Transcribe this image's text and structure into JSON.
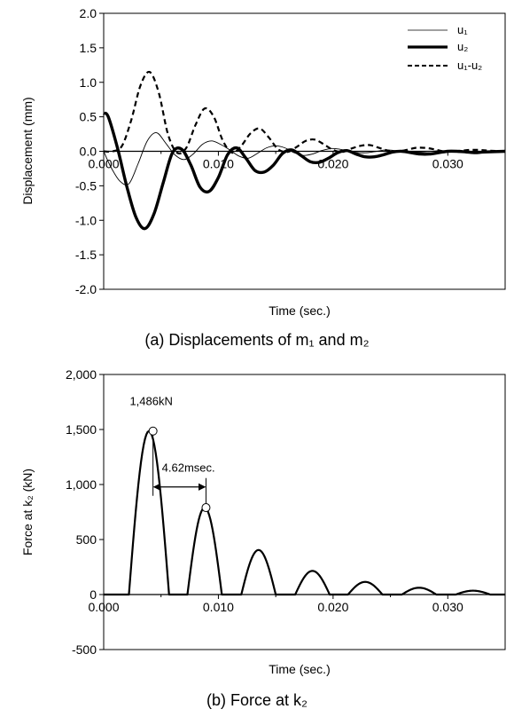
{
  "chart_data": [
    {
      "type": "line",
      "caption": "(a)  Displacements  of  m₁  and  m₂",
      "xlabel": "Time (sec.)",
      "ylabel": "Displacement (mm)",
      "xlim": [
        0,
        0.035
      ],
      "ylim": [
        -2.0,
        2.0
      ],
      "x_ticks": [
        "0.000",
        "0.010",
        "0.020",
        "0.030"
      ],
      "y_ticks": [
        "2.0",
        "1.5",
        "1.0",
        "0.5",
        "0.0",
        "-0.5",
        "-1.0",
        "-1.5",
        "-2.0"
      ],
      "legend_position": "top-right",
      "series": [
        {
          "name": "u₁",
          "style": "thin",
          "x": [
            0,
            0.0006,
            0.0014,
            0.0022,
            0.003,
            0.0038,
            0.0046,
            0.0054,
            0.0062,
            0.007,
            0.0078,
            0.0086,
            0.0094,
            0.0102,
            0.011,
            0.0118,
            0.0126,
            0.0134,
            0.0142,
            0.015,
            0.0158,
            0.0166,
            0.0174,
            0.0182,
            0.019,
            0.0198,
            0.0206,
            0.0214,
            0.0222,
            0.023,
            0.0238,
            0.0246,
            0.0254,
            0.0262,
            0.027,
            0.0278,
            0.0286,
            0.0294,
            0.0302,
            0.031,
            0.0318,
            0.0326,
            0.0334,
            0.035
          ],
          "values": [
            0.0,
            -0.22,
            -0.43,
            -0.47,
            -0.18,
            0.15,
            0.27,
            0.12,
            -0.05,
            -0.12,
            -0.04,
            0.1,
            0.15,
            0.1,
            0.02,
            -0.07,
            -0.1,
            -0.03,
            0.05,
            0.08,
            0.05,
            -0.02,
            -0.06,
            -0.04,
            0.01,
            0.04,
            0.03,
            0.0,
            -0.02,
            -0.02,
            0.0,
            0.02,
            0.01,
            0.0,
            -0.01,
            -0.01,
            0.0,
            0.01,
            0.0,
            0.0,
            0.0,
            0.0,
            0.0,
            0.0
          ]
        },
        {
          "name": "u₂",
          "style": "thick",
          "x": [
            0,
            0.0004,
            0.0012,
            0.002,
            0.0028,
            0.0036,
            0.0044,
            0.0052,
            0.006,
            0.0068,
            0.0076,
            0.0084,
            0.0092,
            0.01,
            0.0108,
            0.0116,
            0.0124,
            0.0132,
            0.014,
            0.0148,
            0.0156,
            0.0164,
            0.0172,
            0.018,
            0.0188,
            0.0196,
            0.0204,
            0.0212,
            0.022,
            0.0228,
            0.0236,
            0.0244,
            0.0252,
            0.026,
            0.0268,
            0.0276,
            0.0284,
            0.0292,
            0.03,
            0.0308,
            0.0316,
            0.0324,
            0.0332,
            0.035
          ],
          "values": [
            0.55,
            0.5,
            0.05,
            -0.5,
            -0.95,
            -1.12,
            -0.9,
            -0.45,
            -0.02,
            0.03,
            -0.2,
            -0.52,
            -0.58,
            -0.38,
            -0.05,
            0.05,
            -0.1,
            -0.28,
            -0.3,
            -0.2,
            -0.03,
            0.02,
            -0.06,
            -0.15,
            -0.16,
            -0.1,
            -0.02,
            0.01,
            -0.04,
            -0.08,
            -0.08,
            -0.05,
            -0.01,
            0.0,
            -0.02,
            -0.04,
            -0.04,
            -0.02,
            0.0,
            0.0,
            -0.01,
            -0.02,
            -0.01,
            0.0
          ]
        },
        {
          "name": "u₁-u₂",
          "style": "dashed",
          "x": [
            0,
            0.0008,
            0.0016,
            0.0024,
            0.0032,
            0.004,
            0.0048,
            0.0056,
            0.0064,
            0.0072,
            0.008,
            0.0088,
            0.0096,
            0.0104,
            0.0112,
            0.012,
            0.0128,
            0.0136,
            0.0144,
            0.0152,
            0.016,
            0.0168,
            0.0176,
            0.0184,
            0.0192,
            0.02,
            0.0208,
            0.0216,
            0.0224,
            0.0232,
            0.024,
            0.0248,
            0.0256,
            0.0264,
            0.0272,
            0.028,
            0.0288,
            0.0296,
            0.0304,
            0.0312,
            0.032,
            0.0328,
            0.0336,
            0.035
          ],
          "values": [
            0.0,
            0.0,
            0.08,
            0.45,
            0.95,
            1.15,
            0.85,
            0.25,
            -0.02,
            0.05,
            0.38,
            0.62,
            0.5,
            0.15,
            -0.02,
            0.08,
            0.26,
            0.33,
            0.2,
            0.03,
            -0.01,
            0.06,
            0.15,
            0.17,
            0.1,
            0.02,
            -0.01,
            0.04,
            0.08,
            0.09,
            0.05,
            0.01,
            0.0,
            0.02,
            0.05,
            0.05,
            0.03,
            0.0,
            0.0,
            0.01,
            0.02,
            0.02,
            0.01,
            0.0
          ]
        }
      ]
    },
    {
      "type": "line",
      "caption": "(b)  Force  at  k₂",
      "xlabel": "Time (sec.)",
      "ylabel": "Force at k₂ (kN)",
      "xlim": [
        0,
        0.035
      ],
      "ylim": [
        -500,
        2000
      ],
      "x_ticks": [
        "0.000",
        "0.010",
        "0.020",
        "0.030"
      ],
      "y_ticks": [
        "2,000",
        "1,500",
        "1,000",
        "500",
        "0",
        "-500"
      ],
      "pulses": [
        {
          "start": 0.0022,
          "end": 0.0057,
          "peak": 1486
        },
        {
          "start": 0.0073,
          "end": 0.0103,
          "peak": 790
        },
        {
          "start": 0.012,
          "end": 0.015,
          "peak": 405
        },
        {
          "start": 0.0167,
          "end": 0.0197,
          "peak": 215
        },
        {
          "start": 0.0213,
          "end": 0.0243,
          "peak": 115
        },
        {
          "start": 0.026,
          "end": 0.029,
          "peak": 62
        },
        {
          "start": 0.0307,
          "end": 0.0337,
          "peak": 35
        }
      ],
      "annotations": {
        "peak_label": "1,486kN",
        "interval_label": "4.62msec.",
        "peak1": {
          "x": 0.0043,
          "y": 1486
        },
        "peak2": {
          "x": 0.00892,
          "y": 790
        }
      }
    }
  ]
}
